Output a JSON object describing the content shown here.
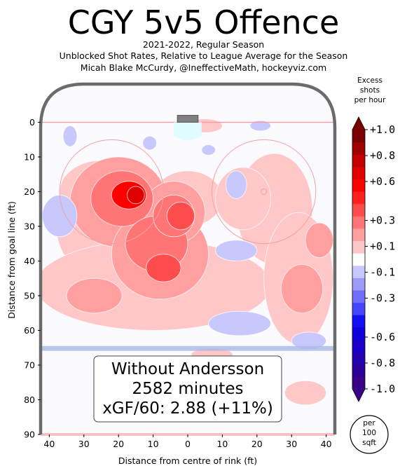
{
  "title": "CGY 5v5 Offence",
  "subtitle_lines": [
    "2021-2022, Regular Season",
    "Unblocked Shot Rates, Relative to League Average for the Season",
    "Micah Blake McCurdy, @IneffectiveMath, hockeyviz.com"
  ],
  "chart_data": {
    "type": "heatmap",
    "xlabel": "Distance from centre of rink (ft)",
    "ylabel": "Distance from goal line (ft)",
    "xlim": [
      -42.5,
      42.5
    ],
    "ylim": [
      90,
      -11
    ],
    "x_tick_values": [
      -40,
      -30,
      -20,
      -10,
      0,
      10,
      20,
      30,
      40
    ],
    "x_tick_labels": [
      "40",
      "30",
      "20",
      "10",
      "0",
      "10",
      "20",
      "30",
      "40"
    ],
    "y_ticks": [
      0,
      10,
      20,
      30,
      40,
      50,
      60,
      70,
      80,
      90
    ],
    "colorbar": {
      "title_lines": [
        "Excess",
        "shots",
        "per hour"
      ],
      "range": [
        -1.0,
        1.0
      ],
      "tick_values": [
        1.0,
        0.8,
        0.6,
        0.3,
        0.1,
        -0.1,
        -0.3,
        -0.6,
        -0.8,
        -1.0
      ],
      "tick_labels": [
        "+1.0",
        "+0.8",
        "+0.6",
        "+0.3",
        "+0.1",
        "-0.1",
        "-0.3",
        "-0.6",
        "-0.8",
        "-1.0"
      ],
      "levels": [
        -1.0,
        -0.9,
        -0.8,
        -0.7,
        -0.6,
        -0.5,
        -0.4,
        -0.3,
        -0.2,
        -0.1,
        0.0,
        0.1,
        0.2,
        0.3,
        0.4,
        0.5,
        0.6,
        0.7,
        0.8,
        0.9,
        1.0
      ],
      "colors": [
        "#3a0085",
        "#2a0096",
        "#2300b0",
        "#1a00c8",
        "#1000dc",
        "#1010f0",
        "#4545ff",
        "#6e6efb",
        "#9b9bfb",
        "#c8c8fc",
        "#fdfdff",
        "#ffc8c8",
        "#ff9f9f",
        "#ff7575",
        "#ff4c4c",
        "#ff2020",
        "#ff0000",
        "#e00000",
        "#c20000",
        "#a00000",
        "#7a0000"
      ]
    },
    "unit_note_lines": [
      "per",
      "100",
      "sqft"
    ],
    "regions": [
      {
        "cx": -20,
        "cy": 30,
        "rx": 18,
        "ry": 17,
        "value": 0.15
      },
      {
        "cx": -10,
        "cy": 47,
        "rx": 34,
        "ry": 13,
        "value": 0.15
      },
      {
        "cx": -25,
        "cy": 20,
        "rx": 12,
        "ry": 9,
        "value": 0.15
      },
      {
        "cx": 0,
        "cy": 22,
        "rx": 10,
        "ry": 8,
        "value": 0.15
      },
      {
        "cx": -20,
        "cy": 23,
        "rx": 14,
        "ry": 13,
        "value": 0.25
      },
      {
        "cx": -8,
        "cy": 38,
        "rx": 14,
        "ry": 13,
        "value": 0.25
      },
      {
        "cx": -4,
        "cy": 26,
        "rx": 9,
        "ry": 9,
        "value": 0.25
      },
      {
        "cx": -27,
        "cy": 50,
        "rx": 8,
        "ry": 5,
        "value": 0.25
      },
      {
        "cx": -19,
        "cy": 22,
        "rx": 9,
        "ry": 8,
        "value": 0.35
      },
      {
        "cx": -9,
        "cy": 35,
        "rx": 9,
        "ry": 8,
        "value": 0.35
      },
      {
        "cx": -4,
        "cy": 27,
        "rx": 6,
        "ry": 6,
        "value": 0.35
      },
      {
        "cx": -17,
        "cy": 21,
        "rx": 5,
        "ry": 4,
        "value": 0.55
      },
      {
        "cx": -7,
        "cy": 42,
        "rx": 5,
        "ry": 4,
        "value": 0.45
      },
      {
        "cx": -2,
        "cy": 27,
        "rx": 4,
        "ry": 4,
        "value": 0.45
      },
      {
        "cx": -15,
        "cy": 21,
        "rx": 2.5,
        "ry": 2.5,
        "value": 0.65
      },
      {
        "cx": 25,
        "cy": 25,
        "rx": 11,
        "ry": 16,
        "value": 0.15
      },
      {
        "cx": 32,
        "cy": 45,
        "rx": 10,
        "ry": 19,
        "value": 0.15
      },
      {
        "cx": 16,
        "cy": 22,
        "rx": 8,
        "ry": 9,
        "value": 0.15
      },
      {
        "cx": 33,
        "cy": 48,
        "rx": 6,
        "ry": 7,
        "value": 0.25
      },
      {
        "cx": 38,
        "cy": 34,
        "rx": 4,
        "ry": 5,
        "value": 0.25
      },
      {
        "cx": 34,
        "cy": 78,
        "rx": 6,
        "ry": 3.5,
        "value": 0.15
      },
      {
        "cx": 5,
        "cy": 1,
        "rx": 5,
        "ry": 2,
        "value": 0.15
      },
      {
        "cx": 7,
        "cy": 67,
        "rx": 6,
        "ry": 2,
        "value": 0.15
      },
      {
        "cx": -37,
        "cy": 27,
        "rx": 5,
        "ry": 6,
        "value": -0.15
      },
      {
        "cx": 14,
        "cy": 37,
        "rx": 6,
        "ry": 3,
        "value": -0.15
      },
      {
        "cx": 15,
        "cy": 58,
        "rx": 9,
        "ry": 3.5,
        "value": -0.15
      },
      {
        "cx": 14,
        "cy": 18,
        "rx": 3,
        "ry": 4,
        "value": -0.15
      },
      {
        "cx": -34,
        "cy": 4,
        "rx": 2,
        "ry": 3,
        "value": -0.15
      },
      {
        "cx": -11,
        "cy": 6,
        "rx": 2,
        "ry": 2,
        "value": -0.15
      },
      {
        "cx": 6,
        "cy": 8,
        "rx": 2,
        "ry": 1.5,
        "value": -0.15
      },
      {
        "cx": 21,
        "cy": 1,
        "rx": 3,
        "ry": 1.5,
        "value": -0.15
      },
      {
        "cx": 35,
        "cy": 63,
        "rx": 5,
        "ry": 2.5,
        "value": -0.15
      }
    ]
  },
  "annotation": {
    "lines": [
      "Without Andersson",
      "2582 minutes",
      "xGF/60: 2.88 (+11%)"
    ]
  }
}
